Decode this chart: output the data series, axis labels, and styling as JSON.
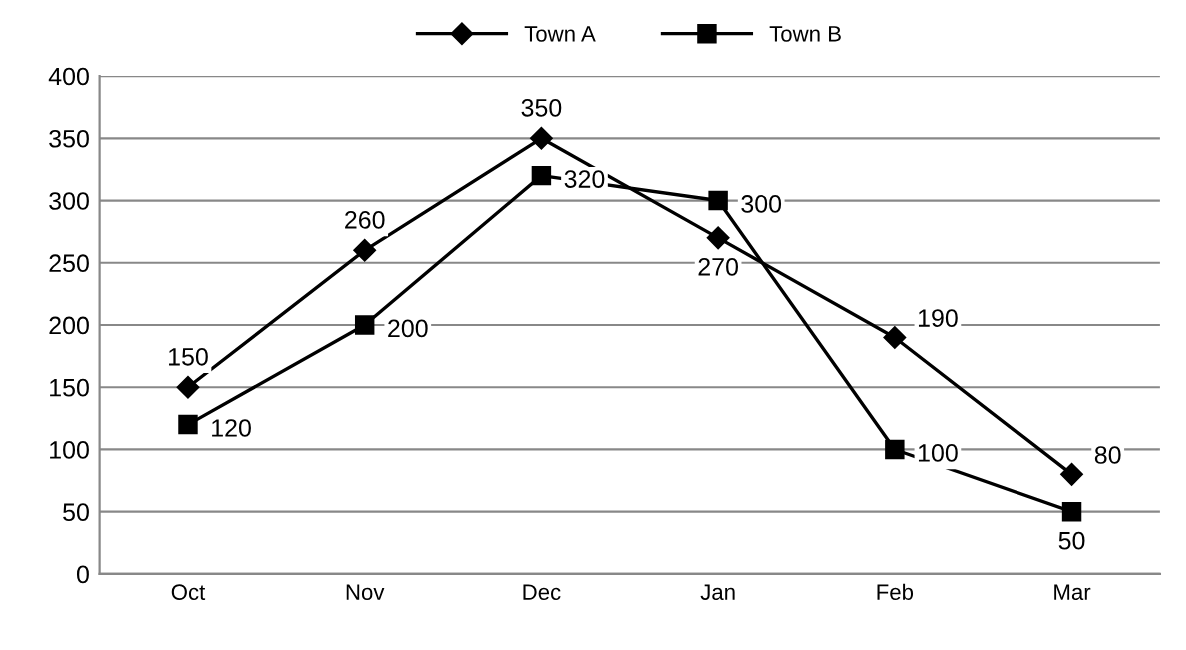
{
  "chart_data": {
    "type": "line",
    "categories": [
      "Oct",
      "Nov",
      "Dec",
      "Jan",
      "Feb",
      "Mar"
    ],
    "series": [
      {
        "name": "Town A",
        "color": "#000000",
        "marker": "diamond",
        "values": [
          150,
          260,
          350,
          270,
          190,
          80
        ]
      },
      {
        "name": "Town B",
        "color": "#000000",
        "marker": "square",
        "values": [
          120,
          200,
          320,
          300,
          100,
          50
        ]
      }
    ],
    "ylim": [
      0,
      400
    ],
    "yticks": [
      0,
      50,
      100,
      150,
      200,
      250,
      300,
      350,
      400
    ],
    "grid": "y",
    "legend": "top",
    "data_labels": true,
    "line_style": "solid"
  }
}
